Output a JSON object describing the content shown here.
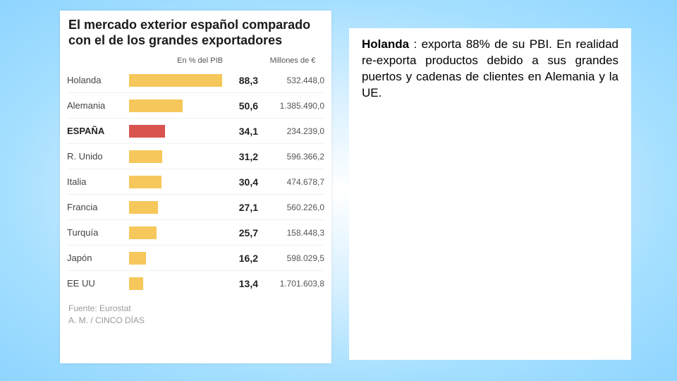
{
  "chart": {
    "title": "El mercado exterior español comparado con el de los grandes exportadores",
    "col_pct_header": "En % del PIB",
    "col_millions_header": "Millones de €",
    "max_pct": 90,
    "bar_color_default": "#f6c75a",
    "bar_color_highlight": "#d9534f",
    "rows": [
      {
        "country": "Holanda",
        "pct": 88.3,
        "pct_label": "88,3",
        "millions": "532.448,0",
        "highlight": false
      },
      {
        "country": "Alemania",
        "pct": 50.6,
        "pct_label": "50,6",
        "millions": "1.385.490,0",
        "highlight": false
      },
      {
        "country": "ESPAÑA",
        "pct": 34.1,
        "pct_label": "34,1",
        "millions": "234.239,0",
        "highlight": true
      },
      {
        "country": "R. Unido",
        "pct": 31.2,
        "pct_label": "31,2",
        "millions": "596.366,2",
        "highlight": false
      },
      {
        "country": "Italia",
        "pct": 30.4,
        "pct_label": "30,4",
        "millions": "474.678,7",
        "highlight": false
      },
      {
        "country": "Francia",
        "pct": 27.1,
        "pct_label": "27,1",
        "millions": "560.226,0",
        "highlight": false
      },
      {
        "country": "Turquía",
        "pct": 25.7,
        "pct_label": "25,7",
        "millions": "158.448,3",
        "highlight": false
      },
      {
        "country": "Japón",
        "pct": 16.2,
        "pct_label": "16,2",
        "millions": "598.029,5",
        "highlight": false
      },
      {
        "country": "EE UU",
        "pct": 13.4,
        "pct_label": "13,4",
        "millions": "1.701.603,8",
        "highlight": false
      }
    ],
    "source_line1": "Fuente: Eurostat",
    "source_line2": "A. M. / CINCO DÍAS"
  },
  "note": {
    "bold": "Holanda",
    "rest": " : exporta 88% de su PBI. En realidad re-exporta productos debido a sus grandes puertos y cadenas de clientes en Alemania y la UE."
  }
}
